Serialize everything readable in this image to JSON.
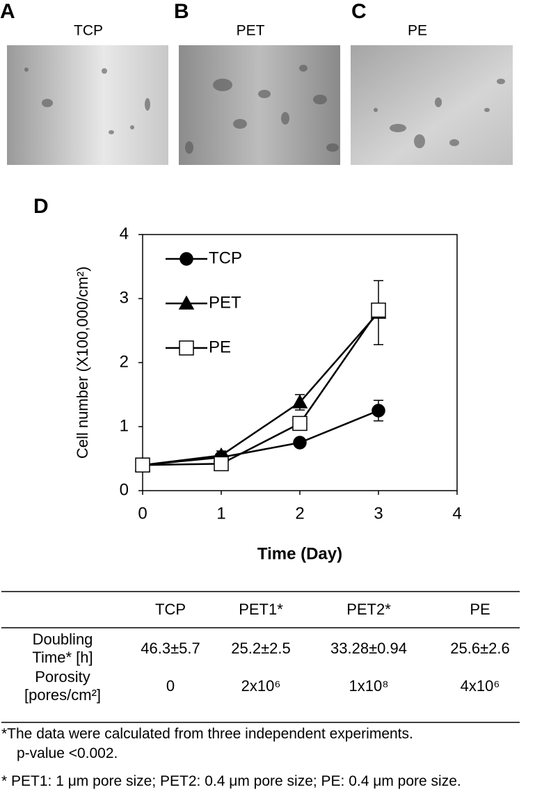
{
  "panels": [
    {
      "letter": "A",
      "label": "TCP"
    },
    {
      "letter": "B",
      "label": "PET"
    },
    {
      "letter": "C",
      "label": "PE"
    }
  ],
  "chart_data": {
    "type": "line",
    "panel": "D",
    "x": [
      0,
      1,
      2,
      3
    ],
    "series": [
      {
        "name": "TCP",
        "marker": "circle",
        "color": "#000000",
        "values": [
          0.4,
          0.52,
          0.75,
          1.25
        ],
        "errors": [
          0.03,
          0.05,
          0.05,
          0.16
        ]
      },
      {
        "name": "PET",
        "marker": "triangle",
        "color": "#000000",
        "values": [
          0.4,
          0.55,
          1.38,
          2.78
        ],
        "errors": [
          0.03,
          0.07,
          0.12,
          0.5
        ]
      },
      {
        "name": "PE",
        "marker": "square",
        "color": "#000000",
        "values": [
          0.4,
          0.42,
          1.05,
          2.82
        ],
        "errors": [
          0.03,
          0.04,
          0.08,
          0.1
        ]
      }
    ],
    "xlabel": "Time (Day)",
    "ylabel": "Cell number (X100,000/cm²)",
    "xlim": [
      0,
      4
    ],
    "xticks": [
      0,
      1,
      2,
      3,
      4
    ],
    "ylim": [
      0,
      4
    ],
    "yticks": [
      0,
      1,
      2,
      3,
      4
    ],
    "grid": false,
    "legend": "upper left"
  },
  "table": {
    "columns": [
      "TCP",
      "PET1*",
      "PET2*",
      "PE"
    ],
    "rows": [
      {
        "label": [
          "Doubling",
          "Time* [h]"
        ],
        "cells": [
          "46.3±5.7",
          "25.2±2.5",
          "33.28±0.94",
          "25.6±2.6"
        ]
      },
      {
        "label": [
          "Porosity",
          "[pores/cm²]"
        ],
        "cells": [
          "0",
          "2x10⁶",
          "1x10⁸",
          "4x10⁶"
        ]
      }
    ]
  },
  "footnotes": [
    "*The data were calculated from three independent experiments.",
    "p-value <0.002.",
    "* PET1: 1 μm pore size; PET2: 0.4 μm pore size; PE: 0.4 μm pore size."
  ]
}
